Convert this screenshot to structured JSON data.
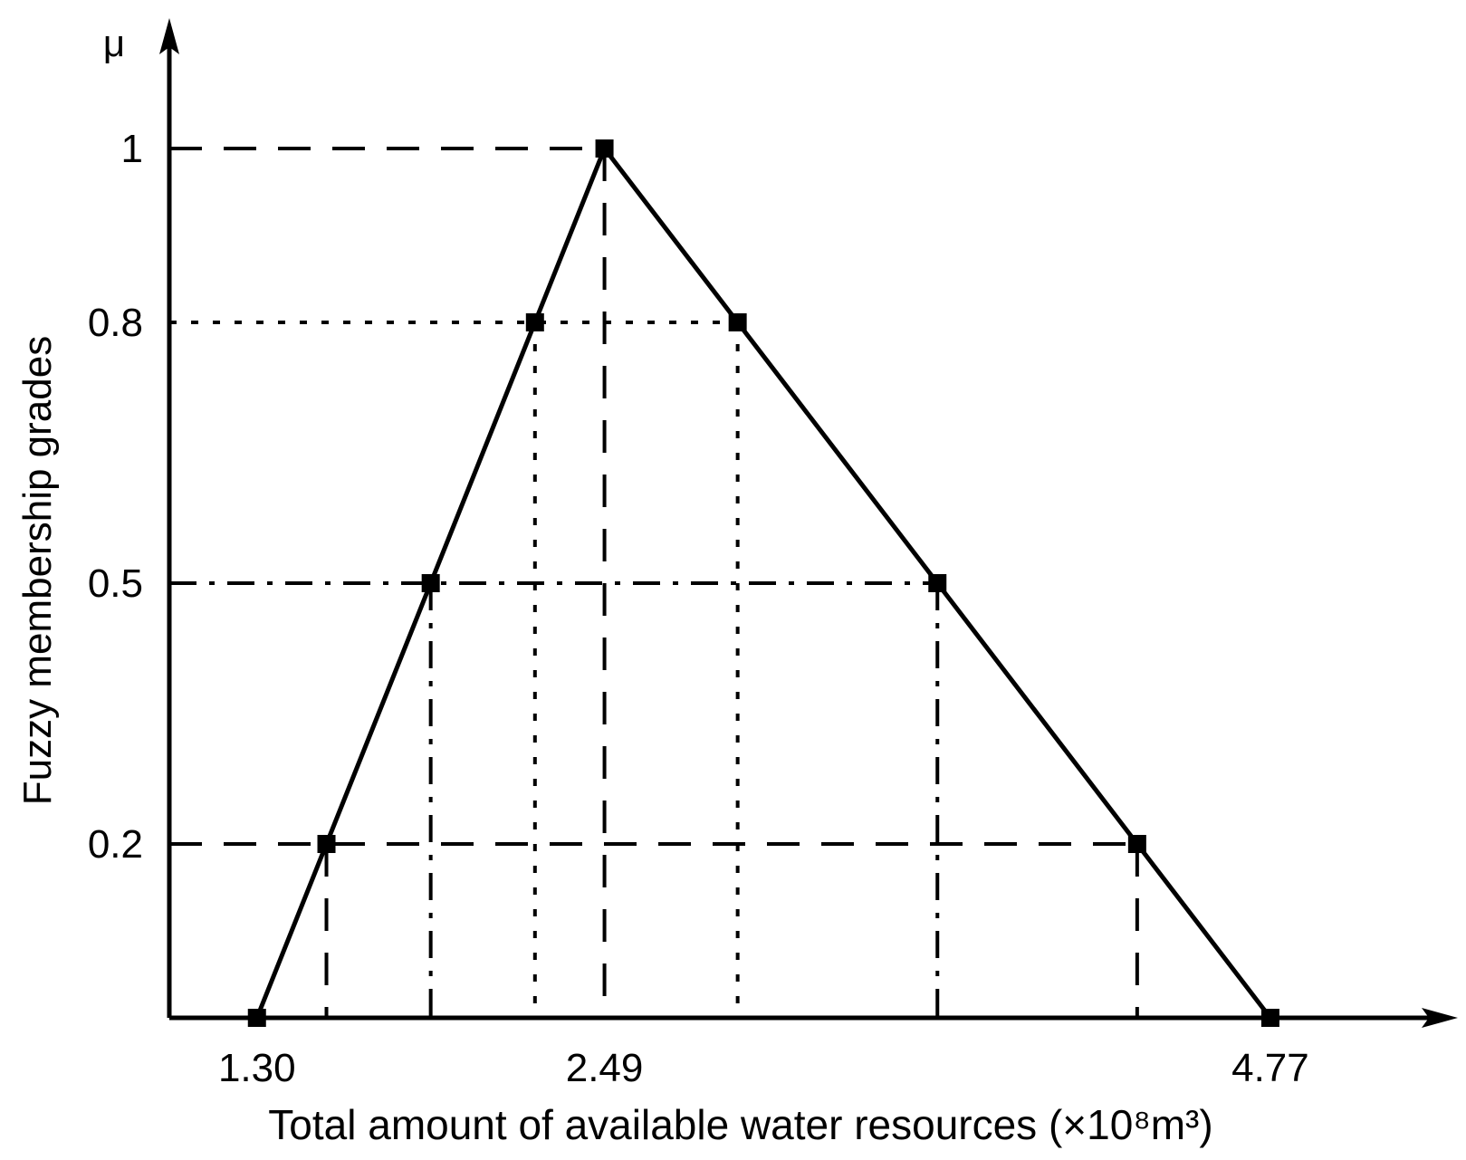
{
  "chart_data": {
    "type": "line",
    "y_axis_symbol": "μ",
    "y_label": "Fuzzy membership grades",
    "x_label": "Total amount of available water resources (×10⁸m³)",
    "x": [
      1.3,
      1.538,
      1.895,
      2.252,
      2.49,
      2.946,
      3.63,
      4.314,
      4.77
    ],
    "series": [
      {
        "color": "#000000",
        "values": [
          0,
          0.2,
          0.5,
          0.8,
          1,
          0.8,
          0.5,
          0.2,
          0
        ],
        "guide_styles": [
          null,
          "dashed",
          "dashdot",
          "dotted",
          "dashed",
          "dotted",
          "dashdot",
          "dashed",
          null
        ]
      }
    ],
    "xlim": [
      1.0,
      5.35
    ],
    "ylim": [
      0,
      1.15
    ],
    "xticks": [
      {
        "value": 1.3,
        "label": "1.30"
      },
      2.49,
      4.77
    ],
    "yticks": [
      0.2,
      0.5,
      0.8,
      1
    ],
    "marker": "square"
  }
}
